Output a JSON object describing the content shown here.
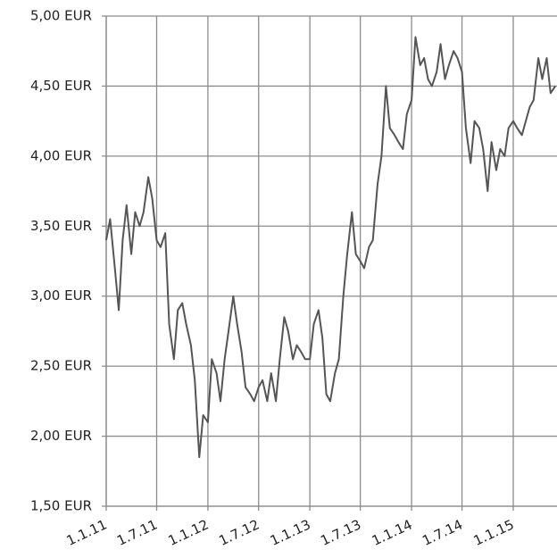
{
  "chart_data": {
    "type": "line",
    "x": [
      "2011-01-01",
      "2011-01-15",
      "2011-02-01",
      "2011-02-15",
      "2011-03-01",
      "2011-03-15",
      "2011-04-01",
      "2011-04-15",
      "2011-05-01",
      "2011-05-15",
      "2011-06-01",
      "2011-06-15",
      "2011-07-01",
      "2011-07-15",
      "2011-08-01",
      "2011-08-15",
      "2011-09-01",
      "2011-09-15",
      "2011-10-01",
      "2011-10-15",
      "2011-11-01",
      "2011-11-15",
      "2011-12-01",
      "2011-12-15",
      "2012-01-01",
      "2012-01-15",
      "2012-02-01",
      "2012-02-15",
      "2012-03-01",
      "2012-03-15",
      "2012-04-01",
      "2012-04-15",
      "2012-05-01",
      "2012-05-15",
      "2012-06-01",
      "2012-06-15",
      "2012-07-01",
      "2012-07-15",
      "2012-08-01",
      "2012-08-15",
      "2012-09-01",
      "2012-09-15",
      "2012-10-01",
      "2012-10-15",
      "2012-11-01",
      "2012-11-15",
      "2012-12-01",
      "2012-12-15",
      "2013-01-01",
      "2013-01-15",
      "2013-02-01",
      "2013-02-15",
      "2013-03-01",
      "2013-03-15",
      "2013-04-01",
      "2013-04-15",
      "2013-05-01",
      "2013-05-15",
      "2013-06-01",
      "2013-06-15",
      "2013-07-01",
      "2013-07-15",
      "2013-08-01",
      "2013-08-15",
      "2013-09-01",
      "2013-09-15",
      "2013-10-01",
      "2013-10-15",
      "2013-11-01",
      "2013-11-15",
      "2013-12-01",
      "2013-12-15",
      "2014-01-01",
      "2014-01-15",
      "2014-02-01",
      "2014-02-15",
      "2014-03-01",
      "2014-03-15",
      "2014-04-01",
      "2014-04-15",
      "2014-05-01",
      "2014-05-15",
      "2014-06-01",
      "2014-06-15",
      "2014-07-01",
      "2014-07-15",
      "2014-08-01",
      "2014-08-15",
      "2014-09-01",
      "2014-09-15",
      "2014-10-01",
      "2014-10-15",
      "2014-11-01",
      "2014-11-15",
      "2014-12-01",
      "2014-12-15",
      "2015-01-01",
      "2015-01-15",
      "2015-02-01",
      "2015-02-15",
      "2015-03-01",
      "2015-03-15",
      "2015-04-01",
      "2015-04-15",
      "2015-05-01",
      "2015-05-15",
      "2015-06-01"
    ],
    "series": [
      {
        "color": "#555555",
        "values": [
          3.4,
          3.55,
          3.2,
          2.9,
          3.4,
          3.65,
          3.3,
          3.6,
          3.5,
          3.6,
          3.85,
          3.7,
          3.4,
          3.35,
          3.45,
          2.8,
          2.55,
          2.9,
          2.95,
          2.8,
          2.65,
          2.4,
          1.85,
          2.15,
          2.1,
          2.55,
          2.45,
          2.25,
          2.55,
          2.75,
          3.0,
          2.8,
          2.6,
          2.35,
          2.3,
          2.25,
          2.35,
          2.4,
          2.25,
          2.45,
          2.25,
          2.55,
          2.85,
          2.75,
          2.55,
          2.65,
          2.6,
          2.55,
          2.55,
          2.8,
          2.9,
          2.7,
          2.3,
          2.25,
          2.45,
          2.55,
          3.0,
          3.3,
          3.6,
          3.3,
          3.25,
          3.2,
          3.35,
          3.4,
          3.8,
          4.0,
          4.5,
          4.2,
          4.15,
          4.1,
          4.05,
          4.3,
          4.4,
          4.85,
          4.65,
          4.7,
          4.55,
          4.5,
          4.6,
          4.8,
          4.55,
          4.65,
          4.75,
          4.7,
          4.6,
          4.2,
          3.95,
          4.25,
          4.2,
          4.05,
          3.75,
          4.1,
          3.9,
          4.05,
          4.0,
          4.2,
          4.25,
          4.2,
          4.15,
          4.25,
          4.35,
          4.4,
          4.7,
          4.55,
          4.7,
          4.45,
          4.5
        ]
      }
    ],
    "xlim": [
      "2011-01-01",
      "2015-06-07"
    ],
    "xticks": [
      {
        "value": "2011-01-01",
        "label": "1.1.11"
      },
      {
        "value": "2011-07-01",
        "label": "1.7.11"
      },
      {
        "value": "2012-01-01",
        "label": "1.1.12"
      },
      {
        "value": "2012-07-01",
        "label": "1.7.12"
      },
      {
        "value": "2013-01-01",
        "label": "1.1.13"
      },
      {
        "value": "2013-07-01",
        "label": "1.7.13"
      },
      {
        "value": "2014-01-01",
        "label": "1.1.14"
      },
      {
        "value": "2014-07-01",
        "label": "1.7.14"
      },
      {
        "value": "2015-01-01",
        "label": "1.1.15"
      }
    ],
    "ylim": [
      1.5,
      5
    ],
    "yticks": [
      {
        "value": 1.5,
        "label": "1,50 EUR"
      },
      {
        "value": 2,
        "label": "2,00 EUR"
      },
      {
        "value": 2.5,
        "label": "2,50 EUR"
      },
      {
        "value": 3,
        "label": "3,00 EUR"
      },
      {
        "value": 3.5,
        "label": "3,50 EUR"
      },
      {
        "value": 4,
        "label": "4,00 EUR"
      },
      {
        "value": 4.5,
        "label": "4,50 EUR"
      },
      {
        "value": 5,
        "label": "5,00 EUR"
      }
    ],
    "grid": true
  }
}
